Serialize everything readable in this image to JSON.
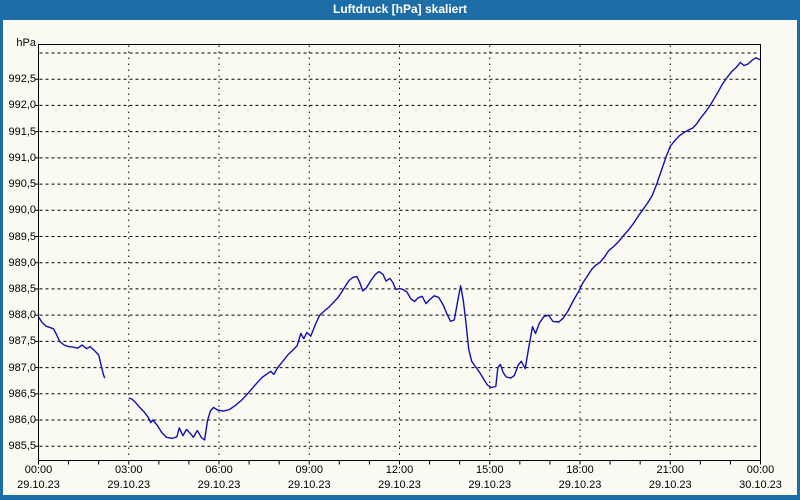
{
  "window": {
    "title": "Luftdruck [hPa] skaliert"
  },
  "colors": {
    "titlebar": "#1D6DA7",
    "window_border": "#1D6DA7",
    "background": "#FAFAF3",
    "plot_frame": "#000000",
    "gridline": "#000000",
    "line": "#1111AE",
    "label_text": "#000000",
    "title_text": "#FFFFFF"
  },
  "chart_data": {
    "type": "line",
    "title": "Luftdruck [hPa] skaliert",
    "y_unit_label": "hPa",
    "grid": true,
    "legend_position": "none",
    "ylim": [
      985.2,
      993.16
    ],
    "x_axis": {
      "domain_hours": [
        0,
        24
      ],
      "minor_tick_every_hours": 1,
      "gridline_hours": [
        3,
        6,
        9,
        12,
        15,
        18,
        21,
        24
      ],
      "major_ticks": [
        {
          "hour": 0,
          "time": "00:00",
          "date": "29.10.23"
        },
        {
          "hour": 3,
          "time": "03:00",
          "date": "29.10.23"
        },
        {
          "hour": 6,
          "time": "06:00",
          "date": "29.10.23"
        },
        {
          "hour": 9,
          "time": "09:00",
          "date": "29.10.23"
        },
        {
          "hour": 12,
          "time": "12:00",
          "date": "29.10.23"
        },
        {
          "hour": 15,
          "time": "15:00",
          "date": "29.10.23"
        },
        {
          "hour": 18,
          "time": "18:00",
          "date": "29.10.23"
        },
        {
          "hour": 21,
          "time": "21:00",
          "date": "29.10.23"
        },
        {
          "hour": 24,
          "time": "00:00",
          "date": "30.10.23"
        }
      ]
    },
    "y_axis": {
      "gridlines": [
        993.0,
        992.5,
        992.0,
        991.5,
        991.0,
        990.5,
        990.0,
        989.5,
        989.0,
        988.5,
        988.0,
        987.5,
        987.0,
        986.5,
        986.0,
        985.5
      ],
      "labels": [
        {
          "value": 992.5,
          "label": "992,5"
        },
        {
          "value": 992.0,
          "label": "992,0"
        },
        {
          "value": 991.5,
          "label": "991,5"
        },
        {
          "value": 991.0,
          "label": "991,0"
        },
        {
          "value": 990.5,
          "label": "990,5"
        },
        {
          "value": 990.0,
          "label": "990,0"
        },
        {
          "value": 989.5,
          "label": "989,5"
        },
        {
          "value": 989.0,
          "label": "989,0"
        },
        {
          "value": 988.5,
          "label": "988,5"
        },
        {
          "value": 988.0,
          "label": "988,0"
        },
        {
          "value": 987.5,
          "label": "987,5"
        },
        {
          "value": 987.0,
          "label": "987,0"
        },
        {
          "value": 986.5,
          "label": "986,5"
        },
        {
          "value": 986.0,
          "label": "986,0"
        },
        {
          "value": 985.5,
          "label": "985,5"
        }
      ]
    },
    "series": [
      {
        "name": "Luftdruck",
        "color": "#1111AE",
        "data_gap_hours": [
          2.2,
          3.0
        ],
        "segments_hours_hpa": [
          [
            [
              0,
              987.97
            ],
            [
              0.12,
              987.86
            ],
            [
              0.25,
              987.79
            ],
            [
              0.4,
              987.76
            ],
            [
              0.5,
              987.74
            ],
            [
              0.6,
              987.63
            ],
            [
              0.7,
              987.5
            ],
            [
              0.85,
              987.43
            ],
            [
              1.0,
              987.4
            ],
            [
              1.15,
              987.39
            ],
            [
              1.3,
              987.37
            ],
            [
              1.45,
              987.43
            ],
            [
              1.6,
              987.36
            ],
            [
              1.72,
              987.4
            ],
            [
              1.85,
              987.33
            ],
            [
              2.0,
              987.24
            ],
            [
              2.08,
              987.05
            ],
            [
              2.15,
              986.88
            ],
            [
              2.2,
              986.8
            ]
          ],
          [
            [
              3.0,
              986.42
            ],
            [
              3.1,
              986.4
            ],
            [
              3.2,
              986.35
            ],
            [
              3.35,
              986.25
            ],
            [
              3.5,
              986.16
            ],
            [
              3.65,
              986.05
            ],
            [
              3.73,
              985.95
            ],
            [
              3.8,
              986.0
            ],
            [
              3.95,
              985.9
            ],
            [
              4.1,
              985.76
            ],
            [
              4.25,
              985.67
            ],
            [
              4.45,
              985.65
            ],
            [
              4.6,
              985.68
            ],
            [
              4.68,
              985.85
            ],
            [
              4.8,
              985.7
            ],
            [
              4.92,
              985.82
            ],
            [
              5.05,
              985.74
            ],
            [
              5.15,
              985.67
            ],
            [
              5.28,
              985.8
            ],
            [
              5.42,
              985.66
            ],
            [
              5.52,
              985.62
            ],
            [
              5.62,
              986.0
            ],
            [
              5.72,
              986.18
            ],
            [
              5.82,
              986.24
            ],
            [
              5.95,
              986.19
            ],
            [
              6.15,
              986.17
            ],
            [
              6.35,
              986.2
            ],
            [
              6.55,
              986.28
            ],
            [
              6.75,
              986.38
            ],
            [
              6.92,
              986.48
            ],
            [
              7.1,
              986.6
            ],
            [
              7.28,
              986.72
            ],
            [
              7.45,
              986.82
            ],
            [
              7.6,
              986.88
            ],
            [
              7.72,
              986.93
            ],
            [
              7.82,
              986.87
            ],
            [
              7.95,
              987.0
            ],
            [
              8.12,
              987.12
            ],
            [
              8.3,
              987.25
            ],
            [
              8.45,
              987.33
            ],
            [
              8.6,
              987.42
            ],
            [
              8.72,
              987.65
            ],
            [
              8.82,
              987.55
            ],
            [
              8.92,
              987.67
            ],
            [
              9.05,
              987.6
            ],
            [
              9.2,
              987.82
            ],
            [
              9.35,
              988.0
            ],
            [
              9.5,
              988.08
            ],
            [
              9.65,
              988.15
            ],
            [
              9.8,
              988.24
            ],
            [
              9.95,
              988.33
            ],
            [
              10.08,
              988.44
            ],
            [
              10.2,
              988.55
            ],
            [
              10.32,
              988.66
            ],
            [
              10.45,
              988.72
            ],
            [
              10.58,
              988.74
            ],
            [
              10.68,
              988.62
            ],
            [
              10.78,
              988.46
            ],
            [
              10.9,
              988.52
            ],
            [
              11.05,
              988.66
            ],
            [
              11.2,
              988.78
            ],
            [
              11.32,
              988.83
            ],
            [
              11.45,
              988.78
            ],
            [
              11.55,
              988.65
            ],
            [
              11.68,
              988.7
            ],
            [
              11.78,
              988.62
            ],
            [
              11.88,
              988.49
            ],
            [
              12.0,
              988.51
            ],
            [
              12.12,
              988.49
            ],
            [
              12.25,
              988.44
            ],
            [
              12.38,
              988.31
            ],
            [
              12.5,
              988.26
            ],
            [
              12.62,
              988.33
            ],
            [
              12.75,
              988.36
            ],
            [
              12.88,
              988.22
            ],
            [
              13.0,
              988.29
            ],
            [
              13.15,
              988.37
            ],
            [
              13.3,
              988.34
            ],
            [
              13.45,
              988.2
            ],
            [
              13.58,
              988.02
            ],
            [
              13.7,
              987.88
            ],
            [
              13.82,
              987.91
            ],
            [
              13.95,
              988.32
            ],
            [
              14.03,
              988.56
            ],
            [
              14.12,
              988.28
            ],
            [
              14.2,
              987.9
            ],
            [
              14.3,
              987.35
            ],
            [
              14.4,
              987.12
            ],
            [
              14.52,
              987.02
            ],
            [
              14.65,
              986.92
            ],
            [
              14.8,
              986.78
            ],
            [
              14.92,
              986.67
            ],
            [
              15.05,
              986.62
            ],
            [
              15.2,
              986.64
            ],
            [
              15.27,
              987.0
            ],
            [
              15.35,
              987.06
            ],
            [
              15.45,
              986.9
            ],
            [
              15.55,
              986.82
            ],
            [
              15.7,
              986.8
            ],
            [
              15.82,
              986.85
            ],
            [
              15.95,
              987.05
            ],
            [
              16.05,
              987.12
            ],
            [
              16.18,
              986.98
            ],
            [
              16.3,
              987.4
            ],
            [
              16.42,
              987.78
            ],
            [
              16.52,
              987.65
            ],
            [
              16.65,
              987.85
            ],
            [
              16.8,
              987.97
            ],
            [
              16.95,
              988.0
            ],
            [
              17.1,
              987.88
            ],
            [
              17.3,
              987.87
            ],
            [
              17.45,
              987.95
            ],
            [
              17.6,
              988.08
            ],
            [
              17.78,
              988.28
            ],
            [
              17.95,
              988.45
            ],
            [
              18.1,
              988.62
            ],
            [
              18.25,
              988.75
            ],
            [
              18.4,
              988.88
            ],
            [
              18.52,
              988.95
            ],
            [
              18.65,
              989.0
            ],
            [
              18.8,
              989.1
            ],
            [
              18.95,
              989.23
            ],
            [
              19.1,
              989.3
            ],
            [
              19.28,
              989.4
            ],
            [
              19.45,
              989.52
            ],
            [
              19.62,
              989.63
            ],
            [
              19.78,
              989.75
            ],
            [
              19.95,
              989.9
            ],
            [
              20.1,
              990.02
            ],
            [
              20.25,
              990.14
            ],
            [
              20.4,
              990.28
            ],
            [
              20.55,
              990.5
            ],
            [
              20.7,
              990.75
            ],
            [
              20.85,
              991.0
            ],
            [
              21.0,
              991.22
            ],
            [
              21.15,
              991.33
            ],
            [
              21.3,
              991.42
            ],
            [
              21.45,
              991.48
            ],
            [
              21.6,
              991.53
            ],
            [
              21.75,
              991.57
            ],
            [
              21.88,
              991.65
            ],
            [
              22.0,
              991.75
            ],
            [
              22.15,
              991.86
            ],
            [
              22.3,
              991.98
            ],
            [
              22.45,
              992.12
            ],
            [
              22.6,
              992.27
            ],
            [
              22.75,
              992.42
            ],
            [
              22.9,
              992.54
            ],
            [
              23.05,
              992.65
            ],
            [
              23.2,
              992.73
            ],
            [
              23.33,
              992.82
            ],
            [
              23.45,
              992.76
            ],
            [
              23.58,
              992.79
            ],
            [
              23.72,
              992.86
            ],
            [
              23.85,
              992.91
            ],
            [
              23.95,
              992.88
            ],
            [
              24.0,
              992.87
            ]
          ]
        ]
      }
    ]
  }
}
